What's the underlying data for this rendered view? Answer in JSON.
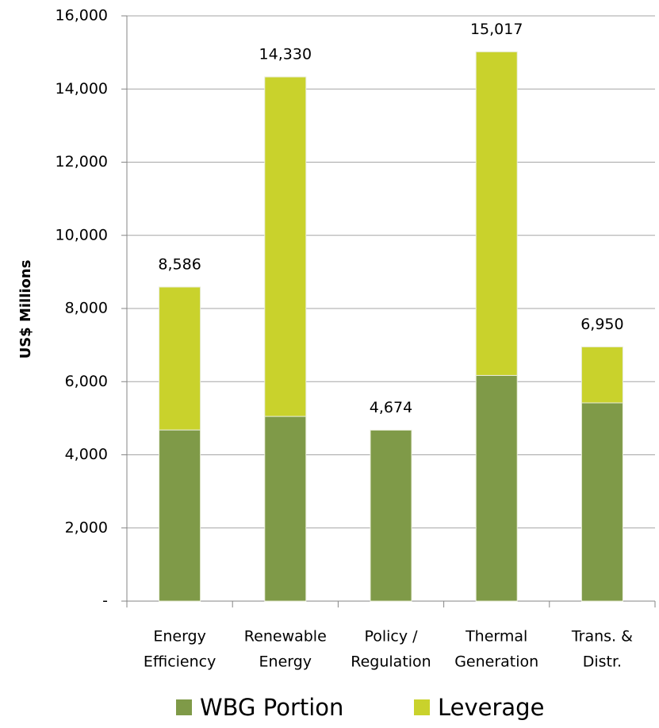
{
  "chart_data": {
    "type": "stacked_bar",
    "y_label": "US$ Millions",
    "categories": [
      [
        "Energy",
        "Efficiency"
      ],
      [
        "Renewable",
        "Energy"
      ],
      [
        "Policy /",
        "Regulation"
      ],
      [
        "Thermal",
        "Generation"
      ],
      [
        "Trans. &",
        "Distr."
      ]
    ],
    "series": [
      {
        "name": "WBG Portion",
        "color": "#7f9a48",
        "values": [
          4680,
          5050,
          4674,
          6170,
          5420
        ]
      },
      {
        "name": "Leverage",
        "color": "#c9d22c",
        "values": [
          3906,
          9280,
          0,
          8847,
          1530
        ]
      }
    ],
    "totals": [
      8586,
      14330,
      4674,
      15017,
      6950
    ],
    "total_labels": [
      "8,586",
      "14,330",
      "4,674",
      "15,017",
      "6,950"
    ],
    "ylim": [
      0,
      16000
    ],
    "yticks": [
      {
        "value": 0,
        "label": "-"
      },
      {
        "value": 2000,
        "label": "2,000"
      },
      {
        "value": 4000,
        "label": "4,000"
      },
      {
        "value": 6000,
        "label": "6,000"
      },
      {
        "value": 8000,
        "label": "8,000"
      },
      {
        "value": 10000,
        "label": "10,000"
      },
      {
        "value": 12000,
        "label": "12,000"
      },
      {
        "value": 14000,
        "label": "14,000"
      },
      {
        "value": 16000,
        "label": "16,000"
      }
    ],
    "grid": true,
    "legend": "bottom"
  }
}
